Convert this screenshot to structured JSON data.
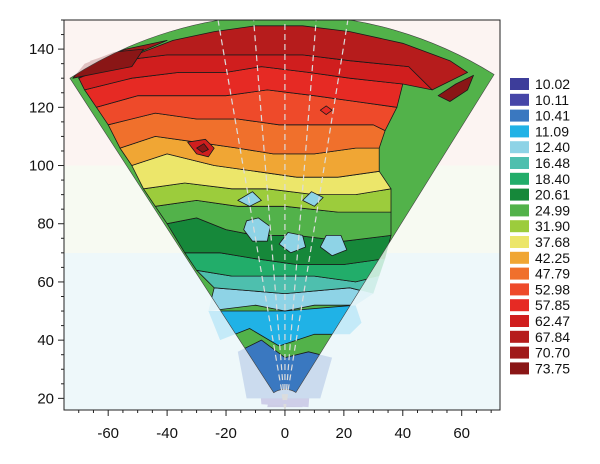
{
  "chart_data": {
    "type": "heatmap",
    "title": "",
    "xlabel": "",
    "ylabel": "",
    "xlim": [
      -75,
      73
    ],
    "ylim": [
      16,
      150
    ],
    "x_ticks": [
      -60,
      -40,
      -20,
      0,
      20,
      40,
      60
    ],
    "y_ticks": [
      20,
      40,
      60,
      80,
      100,
      120,
      140
    ],
    "fan_apex": [
      0,
      16
    ],
    "fan_outer_edge_y": 130,
    "fan_inner_radius": 7,
    "legend_position": "right",
    "legend": [
      {
        "value": "10.02",
        "color": "#3d3d9a"
      },
      {
        "value": "10.11",
        "color": "#4646a8"
      },
      {
        "value": "10.41",
        "color": "#3a78c0"
      },
      {
        "value": "11.09",
        "color": "#20b2e6"
      },
      {
        "value": "12.40",
        "color": "#8ed3e6"
      },
      {
        "value": "16.48",
        "color": "#4ebfae"
      },
      {
        "value": "18.40",
        "color": "#22ad6a"
      },
      {
        "value": "20.61",
        "color": "#16883a"
      },
      {
        "value": "24.99",
        "color": "#52b24a"
      },
      {
        "value": "31.90",
        "color": "#9ccc3c"
      },
      {
        "value": "37.68",
        "color": "#ece66a"
      },
      {
        "value": "42.25",
        "color": "#f0a634"
      },
      {
        "value": "47.79",
        "color": "#f0702c"
      },
      {
        "value": "52.98",
        "color": "#ee4a2a"
      },
      {
        "value": "57.85",
        "color": "#e62a24"
      },
      {
        "value": "62.47",
        "color": "#d01e1e"
      },
      {
        "value": "67.84",
        "color": "#b61c1c"
      },
      {
        "value": "70.70",
        "color": "#a01a1a"
      },
      {
        "value": "73.75",
        "color": "#8a1616"
      }
    ],
    "bands": [
      {
        "level": "10.02",
        "pts": [
          [
            -6,
            17
          ],
          [
            -4,
            27
          ],
          [
            4,
            28
          ],
          [
            6,
            17
          ]
        ]
      },
      {
        "level": "10.11",
        "pts": [
          [
            -8,
            18
          ],
          [
            -9,
            30
          ],
          [
            -4,
            31
          ],
          [
            3,
            33
          ],
          [
            9,
            30
          ],
          [
            8,
            17
          ]
        ]
      },
      {
        "level": "10.41",
        "pts": [
          [
            -13,
            20
          ],
          [
            -16,
            36
          ],
          [
            -8,
            40
          ],
          [
            0,
            34
          ],
          [
            8,
            36
          ],
          [
            16,
            34
          ],
          [
            12,
            20
          ]
        ]
      },
      {
        "level": "11.09",
        "pts": [
          [
            -26,
            50
          ],
          [
            -22,
            40
          ],
          [
            -12,
            44
          ],
          [
            -2,
            38
          ],
          [
            10,
            42
          ],
          [
            22,
            42
          ],
          [
            26,
            46
          ],
          [
            24,
            52
          ],
          [
            0,
            50
          ]
        ]
      },
      {
        "level": "12.40",
        "pts": [
          [
            -26,
            50
          ],
          [
            -10,
            52
          ],
          [
            0,
            50
          ],
          [
            10,
            52
          ],
          [
            24,
            52
          ],
          [
            30,
            56
          ],
          [
            22,
            58
          ],
          [
            0,
            56
          ],
          [
            -24,
            58
          ]
        ]
      },
      {
        "level": "16.48",
        "pts": [
          [
            -24,
            58
          ],
          [
            -30,
            64
          ],
          [
            -18,
            62
          ],
          [
            -6,
            62
          ],
          [
            10,
            62
          ],
          [
            24,
            60
          ],
          [
            32,
            62
          ],
          [
            30,
            56
          ],
          [
            22,
            58
          ],
          [
            0,
            56
          ]
        ]
      },
      {
        "level": "18.40",
        "pts": [
          [
            -30,
            64
          ],
          [
            -34,
            70
          ],
          [
            -22,
            70
          ],
          [
            -10,
            68
          ],
          [
            4,
            66
          ],
          [
            20,
            66
          ],
          [
            34,
            68
          ],
          [
            32,
            62
          ],
          [
            24,
            60
          ],
          [
            10,
            62
          ],
          [
            -6,
            62
          ],
          [
            -18,
            62
          ]
        ]
      },
      {
        "level": "20.61",
        "pts": [
          [
            -34,
            70
          ],
          [
            -40,
            80
          ],
          [
            -30,
            82
          ],
          [
            -20,
            78
          ],
          [
            -10,
            76
          ],
          [
            4,
            76
          ],
          [
            20,
            74
          ],
          [
            36,
            76
          ],
          [
            34,
            68
          ],
          [
            20,
            66
          ],
          [
            4,
            66
          ],
          [
            -10,
            68
          ],
          [
            -22,
            70
          ]
        ]
      },
      {
        "level": "24.99",
        "pts": [
          [
            -40,
            80
          ],
          [
            -44,
            86
          ],
          [
            -30,
            88
          ],
          [
            -16,
            86
          ],
          [
            0,
            86
          ],
          [
            18,
            84
          ],
          [
            36,
            84
          ],
          [
            36,
            76
          ],
          [
            20,
            74
          ],
          [
            4,
            76
          ],
          [
            -10,
            76
          ],
          [
            -20,
            78
          ],
          [
            -30,
            82
          ]
        ]
      },
      {
        "level": "31.90",
        "pts": [
          [
            -44,
            86
          ],
          [
            -48,
            92
          ],
          [
            -34,
            94
          ],
          [
            -18,
            92
          ],
          [
            -6,
            92
          ],
          [
            10,
            90
          ],
          [
            24,
            90
          ],
          [
            36,
            92
          ],
          [
            36,
            84
          ],
          [
            18,
            84
          ],
          [
            0,
            86
          ],
          [
            -16,
            86
          ],
          [
            -30,
            88
          ]
        ]
      },
      {
        "level": "37.68",
        "pts": [
          [
            -48,
            92
          ],
          [
            -52,
            100
          ],
          [
            -40,
            104
          ],
          [
            -24,
            100
          ],
          [
            -10,
            98
          ],
          [
            4,
            96
          ],
          [
            18,
            96
          ],
          [
            32,
            98
          ],
          [
            36,
            92
          ],
          [
            24,
            90
          ],
          [
            10,
            90
          ],
          [
            -6,
            92
          ],
          [
            -18,
            92
          ],
          [
            -34,
            94
          ]
        ]
      },
      {
        "level": "42.25",
        "pts": [
          [
            -52,
            100
          ],
          [
            -56,
            106
          ],
          [
            -44,
            110
          ],
          [
            -30,
            108
          ],
          [
            -16,
            106
          ],
          [
            -4,
            104
          ],
          [
            10,
            104
          ],
          [
            24,
            106
          ],
          [
            32,
            106
          ],
          [
            32,
            98
          ],
          [
            18,
            96
          ],
          [
            4,
            96
          ],
          [
            -10,
            98
          ],
          [
            -24,
            100
          ],
          [
            -40,
            104
          ]
        ]
      },
      {
        "level": "47.79",
        "pts": [
          [
            -56,
            106
          ],
          [
            -60,
            114
          ],
          [
            -44,
            118
          ],
          [
            -30,
            116
          ],
          [
            -16,
            116
          ],
          [
            -2,
            114
          ],
          [
            12,
            114
          ],
          [
            30,
            114
          ],
          [
            34,
            112
          ],
          [
            32,
            106
          ],
          [
            24,
            106
          ],
          [
            10,
            104
          ],
          [
            -4,
            104
          ],
          [
            -16,
            106
          ],
          [
            -30,
            108
          ],
          [
            -44,
            110
          ]
        ]
      },
      {
        "level": "52.98",
        "pts": [
          [
            -60,
            114
          ],
          [
            -64,
            120
          ],
          [
            -50,
            124
          ],
          [
            -36,
            124
          ],
          [
            -20,
            124
          ],
          [
            -6,
            126
          ],
          [
            10,
            124
          ],
          [
            24,
            122
          ],
          [
            38,
            120
          ],
          [
            34,
            112
          ],
          [
            30,
            114
          ],
          [
            12,
            114
          ],
          [
            -2,
            114
          ],
          [
            -16,
            116
          ],
          [
            -30,
            116
          ],
          [
            -44,
            118
          ]
        ]
      },
      {
        "level": "57.85",
        "pts": [
          [
            -64,
            120
          ],
          [
            -68,
            126
          ],
          [
            -52,
            130
          ],
          [
            -36,
            132
          ],
          [
            -20,
            132
          ],
          [
            -8,
            134
          ],
          [
            8,
            132
          ],
          [
            22,
            130
          ],
          [
            40,
            128
          ],
          [
            38,
            120
          ],
          [
            24,
            122
          ],
          [
            10,
            124
          ],
          [
            -6,
            126
          ],
          [
            -20,
            124
          ],
          [
            -36,
            124
          ],
          [
            -50,
            124
          ]
        ]
      },
      {
        "level": "62.47",
        "pts": [
          [
            -68,
            126
          ],
          [
            -70,
            130
          ],
          [
            -56,
            136
          ],
          [
            -40,
            138
          ],
          [
            -24,
            138
          ],
          [
            -10,
            138
          ],
          [
            6,
            138
          ],
          [
            22,
            136
          ],
          [
            42,
            134
          ],
          [
            50,
            126
          ],
          [
            40,
            128
          ],
          [
            22,
            130
          ],
          [
            8,
            132
          ],
          [
            -8,
            134
          ],
          [
            -20,
            132
          ],
          [
            -36,
            132
          ],
          [
            -52,
            130
          ]
        ]
      },
      {
        "level": "67.84",
        "pts": [
          [
            -38,
            143
          ],
          [
            -24,
            146
          ],
          [
            -10,
            148
          ],
          [
            6,
            148
          ],
          [
            22,
            146
          ],
          [
            40,
            142
          ],
          [
            56,
            136
          ],
          [
            62,
            132
          ],
          [
            50,
            126
          ],
          [
            42,
            134
          ],
          [
            22,
            136
          ],
          [
            6,
            138
          ],
          [
            -10,
            138
          ],
          [
            -24,
            138
          ],
          [
            -40,
            138
          ],
          [
            -56,
            136
          ]
        ]
      },
      {
        "level": "70.70",
        "pts": [
          [
            -70,
            130
          ],
          [
            -66,
            136
          ],
          [
            -54,
            140
          ],
          [
            -40,
            143
          ],
          [
            -56,
            136
          ]
        ]
      },
      {
        "level": "73.75",
        "pts": [
          [
            -72,
            130
          ],
          [
            -68,
            135
          ],
          [
            -58,
            139
          ],
          [
            -48,
            140
          ],
          [
            -52,
            134
          ],
          [
            -62,
            132
          ]
        ]
      },
      {
        "level": "73.75",
        "pts": [
          [
            52,
            124
          ],
          [
            58,
            128
          ],
          [
            64,
            131
          ],
          [
            62,
            126
          ],
          [
            56,
            122
          ]
        ]
      },
      {
        "level": "62.47",
        "pts": [
          [
            -33,
            108
          ],
          [
            -30,
            104
          ],
          [
            -26,
            103
          ],
          [
            -24,
            106
          ],
          [
            -27,
            109
          ]
        ]
      },
      {
        "level": "73.75",
        "pts": [
          [
            -30,
            106
          ],
          [
            -28,
            104.5
          ],
          [
            -26,
            105.5
          ],
          [
            -27.5,
            107.5
          ]
        ]
      },
      {
        "level": "12.40",
        "pts": [
          [
            -14,
            78
          ],
          [
            -11,
            74
          ],
          [
            -6,
            74
          ],
          [
            -5,
            79
          ],
          [
            -9,
            82
          ],
          [
            -13,
            81
          ]
        ]
      },
      {
        "level": "12.40",
        "pts": [
          [
            -2,
            73
          ],
          [
            2,
            70
          ],
          [
            7,
            72
          ],
          [
            6,
            76
          ],
          [
            1,
            77
          ]
        ]
      },
      {
        "level": "12.40",
        "pts": [
          [
            -16,
            88
          ],
          [
            -12,
            86
          ],
          [
            -8,
            88
          ],
          [
            -11,
            91
          ]
        ]
      },
      {
        "level": "12.40",
        "pts": [
          [
            12,
            72
          ],
          [
            16,
            69
          ],
          [
            21,
            71
          ],
          [
            19,
            76
          ],
          [
            14,
            76
          ]
        ]
      },
      {
        "level": "12.40",
        "pts": [
          [
            6,
            88
          ],
          [
            10,
            86
          ],
          [
            13,
            89
          ],
          [
            9,
            91
          ]
        ]
      },
      {
        "level": "57.85",
        "pts": [
          [
            12,
            119
          ],
          [
            14,
            117.5
          ],
          [
            16,
            119
          ],
          [
            14,
            120.5
          ]
        ]
      }
    ]
  }
}
